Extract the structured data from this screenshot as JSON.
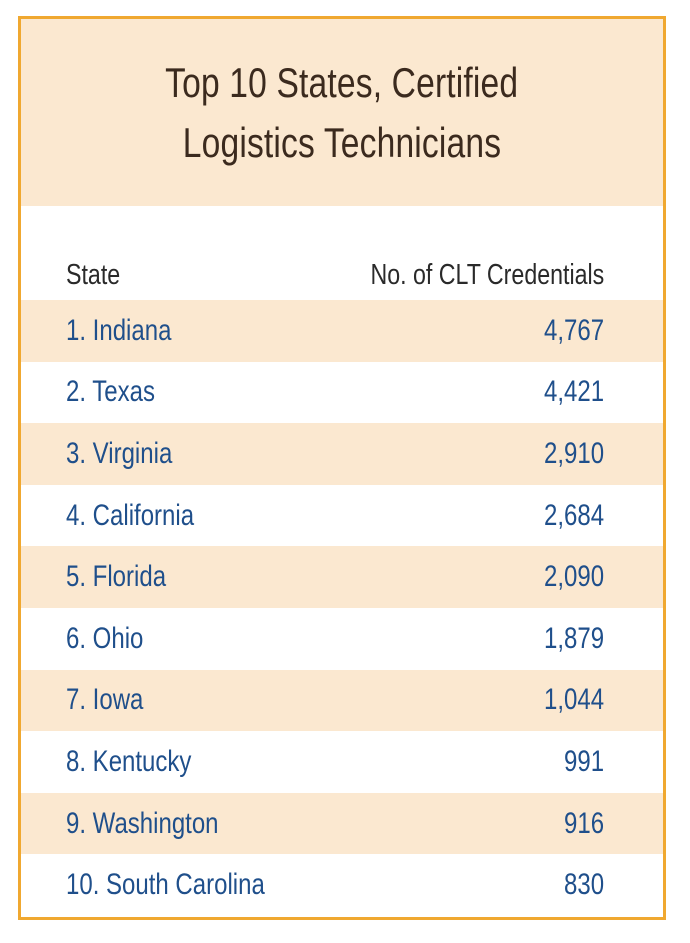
{
  "colors": {
    "border": "#f0a830",
    "band": "#fbe8d0",
    "title_text": "#3b2a1e",
    "row_text": "#1f4f8b"
  },
  "title": {
    "line1": "Top 10 States, Certified",
    "line2": "Logistics Technicians"
  },
  "chart_data": {
    "type": "table",
    "title": "Top 10 States, Certified Logistics Technicians",
    "columns": [
      "State",
      "No. of CLT Credentials"
    ],
    "rows": [
      {
        "rank_label": "1. Indiana",
        "state": "Indiana",
        "value_label": "4,767",
        "value": 4767
      },
      {
        "rank_label": "2. Texas",
        "state": "Texas",
        "value_label": "4,421",
        "value": 4421
      },
      {
        "rank_label": "3. Virginia",
        "state": "Virginia",
        "value_label": "2,910",
        "value": 2910
      },
      {
        "rank_label": "4. California",
        "state": "California",
        "value_label": "2,684",
        "value": 2684
      },
      {
        "rank_label": "5. Florida",
        "state": "Florida",
        "value_label": "2,090",
        "value": 2090
      },
      {
        "rank_label": "6. Ohio",
        "state": "Ohio",
        "value_label": "1,879",
        "value": 1879
      },
      {
        "rank_label": "7. Iowa",
        "state": "Iowa",
        "value_label": "1,044",
        "value": 1044
      },
      {
        "rank_label": "8. Kentucky",
        "state": "Kentucky",
        "value_label": "991",
        "value": 991
      },
      {
        "rank_label": "9. Washington",
        "state": "Washington",
        "value_label": "916",
        "value": 916
      },
      {
        "rank_label": "10. South Carolina",
        "state": "South Carolina",
        "value_label": "830",
        "value": 830
      }
    ]
  }
}
